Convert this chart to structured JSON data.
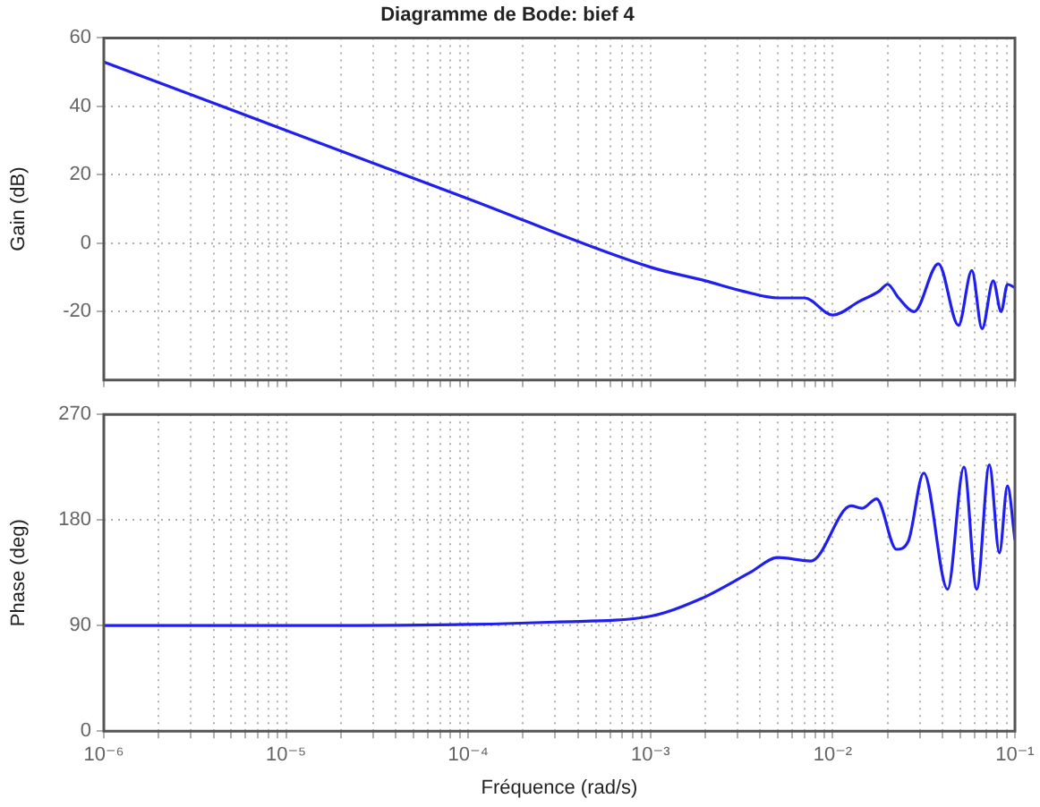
{
  "chart_data": [
    {
      "type": "line",
      "title": "Diagramme de Bode: bief 4",
      "ylabel": "Gain (dB)",
      "color": "#1f1fef",
      "grid": true,
      "tick_labels": "y",
      "log": "x",
      "x": [
        1e-06,
        1e-05,
        0.0001,
        0.001,
        0.002,
        0.0032,
        0.005,
        0.007,
        0.01,
        0.014,
        0.018,
        0.02,
        0.023,
        0.028,
        0.038,
        0.049,
        0.058,
        0.066,
        0.076,
        0.084,
        0.091,
        0.1
      ],
      "values": [
        53,
        33,
        13,
        -7,
        -11,
        -14,
        -16,
        -16,
        -21,
        -17,
        -14,
        -12,
        -16,
        -20,
        -6,
        -24,
        -8,
        -25,
        -11,
        -20,
        -12,
        -13
      ],
      "xlim": [
        1e-06,
        0.1
      ],
      "ylim": [
        -40,
        60
      ],
      "yticks": [
        -20,
        0,
        20,
        40,
        60
      ],
      "xticks": [
        {
          "value": 1e-06,
          "label": null
        },
        {
          "value": 2e-06,
          "label": null
        },
        {
          "value": 3e-06,
          "label": null
        },
        {
          "value": 4e-06,
          "label": null
        },
        {
          "value": 5e-06,
          "label": null
        },
        {
          "value": 6e-06,
          "label": null
        },
        {
          "value": 7e-06,
          "label": null
        },
        {
          "value": 8e-06,
          "label": null
        },
        {
          "value": 9e-06,
          "label": null
        },
        {
          "value": 1e-05,
          "label": null
        },
        {
          "value": 2e-05,
          "label": null
        },
        {
          "value": 3e-05,
          "label": null
        },
        {
          "value": 4e-05,
          "label": null
        },
        {
          "value": 5e-05,
          "label": null
        },
        {
          "value": 6e-05,
          "label": null
        },
        {
          "value": 7e-05,
          "label": null
        },
        {
          "value": 8e-05,
          "label": null
        },
        {
          "value": 9e-05,
          "label": null
        },
        {
          "value": 0.0001,
          "label": null
        },
        {
          "value": 0.0002,
          "label": null
        },
        {
          "value": 0.0003,
          "label": null
        },
        {
          "value": 0.0004,
          "label": null
        },
        {
          "value": 0.0005,
          "label": null
        },
        {
          "value": 0.0006,
          "label": null
        },
        {
          "value": 0.0007,
          "label": null
        },
        {
          "value": 0.0008,
          "label": null
        },
        {
          "value": 0.0009,
          "label": null
        },
        {
          "value": 0.001,
          "label": null
        },
        {
          "value": 0.002,
          "label": null
        },
        {
          "value": 0.003,
          "label": null
        },
        {
          "value": 0.004,
          "label": null
        },
        {
          "value": 0.005,
          "label": null
        },
        {
          "value": 0.006,
          "label": null
        },
        {
          "value": 0.007,
          "label": null
        },
        {
          "value": 0.008,
          "label": null
        },
        {
          "value": 0.009,
          "label": null
        },
        {
          "value": 0.01,
          "label": null
        },
        {
          "value": 0.02,
          "label": null
        },
        {
          "value": 0.03,
          "label": null
        },
        {
          "value": 0.04,
          "label": null
        },
        {
          "value": 0.05,
          "label": null
        },
        {
          "value": 0.06,
          "label": null
        },
        {
          "value": 0.07,
          "label": null
        },
        {
          "value": 0.08,
          "label": null
        },
        {
          "value": 0.09,
          "label": null
        },
        {
          "value": 0.1,
          "label": null
        }
      ]
    },
    {
      "type": "line",
      "ylabel": "Phase (deg)",
      "xlabel": "Fréquence (rad/s)",
      "color": "#1f1fef",
      "grid": true,
      "log": "x",
      "x": [
        1e-06,
        1e-05,
        0.0001,
        0.0003,
        0.001,
        0.0019,
        0.0035,
        0.005,
        0.0076,
        0.0126,
        0.0145,
        0.0174,
        0.0224,
        0.026,
        0.0316,
        0.0427,
        0.0525,
        0.0617,
        0.0724,
        0.0822,
        0.091,
        0.1
      ],
      "values": [
        90,
        90,
        91,
        93,
        98,
        113,
        135,
        148,
        145,
        192,
        190,
        198,
        155,
        162,
        220,
        121,
        225,
        121,
        227,
        152,
        209,
        163
      ],
      "xlim": [
        1e-06,
        0.1
      ],
      "ylim": [
        0,
        270
      ],
      "yticks": [
        0,
        90,
        180,
        270
      ],
      "xticks": [
        {
          "value": 1e-06,
          "label": "10⁻⁶"
        },
        {
          "value": 2e-06,
          "label": null
        },
        {
          "value": 3e-06,
          "label": null
        },
        {
          "value": 4e-06,
          "label": null
        },
        {
          "value": 5e-06,
          "label": null
        },
        {
          "value": 6e-06,
          "label": null
        },
        {
          "value": 7e-06,
          "label": null
        },
        {
          "value": 8e-06,
          "label": null
        },
        {
          "value": 9e-06,
          "label": null
        },
        {
          "value": 1e-05,
          "label": "10⁻⁵"
        },
        {
          "value": 2e-05,
          "label": null
        },
        {
          "value": 3e-05,
          "label": null
        },
        {
          "value": 4e-05,
          "label": null
        },
        {
          "value": 5e-05,
          "label": null
        },
        {
          "value": 6e-05,
          "label": null
        },
        {
          "value": 7e-05,
          "label": null
        },
        {
          "value": 8e-05,
          "label": null
        },
        {
          "value": 9e-05,
          "label": null
        },
        {
          "value": 0.0001,
          "label": "10⁻⁴"
        },
        {
          "value": 0.0002,
          "label": null
        },
        {
          "value": 0.0003,
          "label": null
        },
        {
          "value": 0.0004,
          "label": null
        },
        {
          "value": 0.0005,
          "label": null
        },
        {
          "value": 0.0006,
          "label": null
        },
        {
          "value": 0.0007,
          "label": null
        },
        {
          "value": 0.0008,
          "label": null
        },
        {
          "value": 0.0009,
          "label": null
        },
        {
          "value": 0.001,
          "label": "10⁻³"
        },
        {
          "value": 0.002,
          "label": null
        },
        {
          "value": 0.003,
          "label": null
        },
        {
          "value": 0.004,
          "label": null
        },
        {
          "value": 0.005,
          "label": null
        },
        {
          "value": 0.006,
          "label": null
        },
        {
          "value": 0.007,
          "label": null
        },
        {
          "value": 0.008,
          "label": null
        },
        {
          "value": 0.009,
          "label": null
        },
        {
          "value": 0.01,
          "label": "10⁻²"
        },
        {
          "value": 0.02,
          "label": null
        },
        {
          "value": 0.03,
          "label": null
        },
        {
          "value": 0.04,
          "label": null
        },
        {
          "value": 0.05,
          "label": null
        },
        {
          "value": 0.06,
          "label": null
        },
        {
          "value": 0.07,
          "label": null
        },
        {
          "value": 0.08,
          "label": null
        },
        {
          "value": 0.09,
          "label": null
        },
        {
          "value": 0.1,
          "label": "10⁻¹"
        }
      ]
    }
  ]
}
